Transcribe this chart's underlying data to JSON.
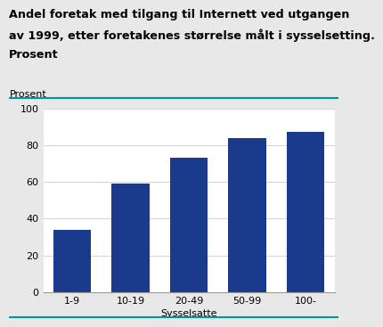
{
  "title_lines": [
    "Andel foretak med tilgang til Internett ved utgangen",
    "av 1999, etter foretakenes størrelse målt i sysselsetting.",
    "Prosent"
  ],
  "categories": [
    "1-9",
    "10-19",
    "20-49",
    "50-99",
    "100-"
  ],
  "values": [
    34,
    59,
    73,
    84,
    87
  ],
  "bar_color": "#1a3a8c",
  "ylabel": "Prosent",
  "xlabel": "Sysselsatte",
  "ylim": [
    0,
    100
  ],
  "yticks": [
    0,
    20,
    40,
    60,
    80,
    100
  ],
  "background_color": "#e8e8e8",
  "title_fontsize": 9.2,
  "axis_fontsize": 8,
  "tick_fontsize": 8,
  "teal_line_color": "#009999"
}
